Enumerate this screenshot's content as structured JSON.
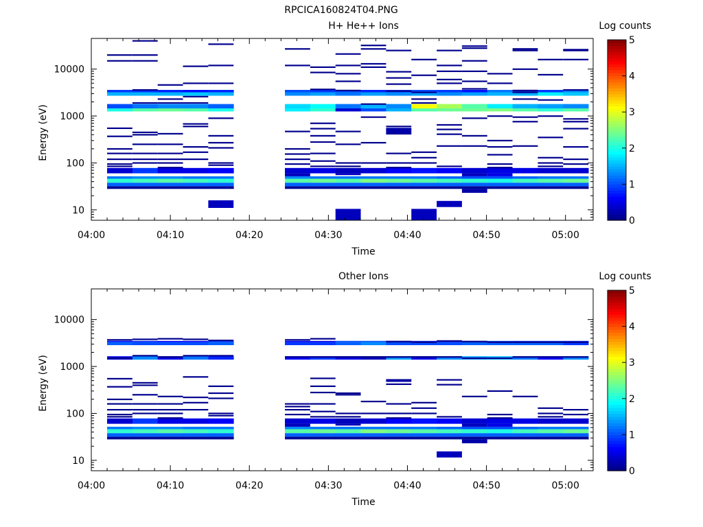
{
  "title": "RPCICA160824T04.PNG",
  "chart_data": [
    {
      "type": "heatmap",
      "title": "H+ He++ Ions",
      "xlabel": "Time",
      "ylabel": "Energy (eV)",
      "x_ticks": [
        "04:00",
        "04:10",
        "04:20",
        "04:30",
        "04:40",
        "04:50",
        "05:00"
      ],
      "y_ticks": [
        "10",
        "100",
        "1000",
        "10000"
      ],
      "x_range_min": [
        0,
        63.5
      ],
      "y_range_ev": [
        6,
        45000
      ],
      "y_scale": "log",
      "colorbar": {
        "label": "Log counts",
        "ticks": [
          "0",
          "1",
          "2",
          "3",
          "4",
          "5"
        ],
        "range": [
          0,
          5
        ],
        "colormap": "jet"
      },
      "time_columns_min": [
        [
          2.0,
          5.2
        ],
        [
          5.2,
          8.4
        ],
        [
          8.4,
          11.6
        ],
        [
          11.6,
          14.8
        ],
        [
          14.8,
          18.0
        ],
        [
          24.5,
          27.7
        ],
        [
          27.7,
          30.9
        ],
        [
          30.9,
          34.1
        ],
        [
          34.1,
          37.3
        ],
        [
          37.3,
          40.5
        ],
        [
          40.5,
          43.7
        ],
        [
          43.7,
          46.9
        ],
        [
          46.9,
          50.1
        ],
        [
          50.1,
          53.3
        ],
        [
          53.3,
          56.5
        ],
        [
          56.5,
          59.7
        ],
        [
          59.7,
          62.9
        ]
      ],
      "bands": [
        {
          "e_low": 28,
          "e_high": 32,
          "levels": [
            0.1,
            0.1,
            0.1,
            0.1,
            0.1,
            0.1,
            0.1,
            0.1,
            0.1,
            0.1,
            0.1,
            0.1,
            0.1,
            0.1,
            0.1,
            0.1,
            0.1
          ]
        },
        {
          "e_low": 32,
          "e_high": 38,
          "levels": [
            1.1,
            1.1,
            1.1,
            1.1,
            1.1,
            1.1,
            1.1,
            1.1,
            1.1,
            1.1,
            1.1,
            1.1,
            1.1,
            1.1,
            1.1,
            1.1,
            1.1
          ]
        },
        {
          "e_low": 38,
          "e_high": 46,
          "levels": [
            2.1,
            2.2,
            2.3,
            2.2,
            2.1,
            2.3,
            2.4,
            2.3,
            2.5,
            2.4,
            2.3,
            2.2,
            2.1,
            2.0,
            2.2,
            2.3,
            2.4
          ]
        },
        {
          "e_low": 46,
          "e_high": 52,
          "levels": [
            1.2,
            1.3,
            1.3,
            1.2,
            1.2,
            1.3,
            1.2,
            1.2,
            1.2,
            1.2,
            1.2,
            1.1,
            1.0,
            1.0,
            1.1,
            1.2,
            1.2
          ]
        },
        {
          "e_low": 60,
          "e_high": 78,
          "levels": [
            0.4,
            0.9,
            0.5,
            0.5,
            0.6,
            0.4,
            0.5,
            0.3,
            0.4,
            0.6,
            0.7,
            0.6,
            0.4,
            0.5,
            0.5,
            0.4,
            0.4
          ]
        },
        {
          "e_low": 1250,
          "e_high": 1450,
          "levels": [
            2.0,
            2.3,
            2.4,
            2.3,
            2.0,
            1.8,
            2.1,
            0.4,
            1.0,
            1.5,
            2.3,
            2.4,
            2.4,
            2.5,
            2.3,
            2.1,
            2.3
          ]
        },
        {
          "e_low": 1450,
          "e_high": 1800,
          "levels": [
            1.0,
            1.2,
            1.3,
            1.3,
            1.1,
            1.7,
            1.9,
            1.2,
            1.5,
            1.3,
            3.1,
            2.7,
            2.3,
            1.8,
            1.5,
            1.4,
            1.3
          ]
        },
        {
          "e_low": 2700,
          "e_high": 3200,
          "levels": [
            1.5,
            1.5,
            1.5,
            1.6,
            1.5,
            1.3,
            1.4,
            1.2,
            1.4,
            1.3,
            1.4,
            1.3,
            1.4,
            1.5,
            1.5,
            1.8,
            1.6
          ]
        },
        {
          "e_low": 3200,
          "e_high": 3600,
          "levels": [
            0.9,
            0.9,
            0.8,
            0.7,
            0.8,
            1.0,
            0.9,
            1.0,
            0.8,
            0.9,
            1.0,
            0.9,
            0.7,
            1.2,
            1.0,
            0.9,
            1.3
          ]
        }
      ],
      "lines": [
        {
          "t": 0,
          "e": [
            20000,
            15000,
            550,
            370,
            200,
            160,
            120,
            95,
            85
          ]
        },
        {
          "t": 1,
          "e": [
            40000,
            20000,
            15000,
            3600,
            1900,
            450,
            400,
            250,
            160,
            120,
            100
          ]
        },
        {
          "t": 2,
          "e": [
            4600,
            2300,
            1900,
            420,
            250,
            160,
            120,
            100,
            80
          ]
        },
        {
          "t": 3,
          "e": [
            11500,
            5000,
            2600,
            1900,
            680,
            600,
            220,
            170,
            120
          ]
        },
        {
          "t": 4,
          "e": [
            34000,
            12000,
            5000,
            900,
            380,
            270,
            210,
            100,
            90
          ]
        },
        {
          "t": 5,
          "e": [
            27000,
            12000,
            470,
            200,
            155,
            120,
            95
          ]
        },
        {
          "t": 6,
          "e": [
            11000,
            8500,
            3700,
            700,
            540,
            380,
            280,
            160,
            110,
            85
          ]
        },
        {
          "t": 7,
          "e": [
            21000,
            12000,
            8000,
            5500,
            3500,
            470,
            250,
            100,
            85
          ]
        },
        {
          "t": 8,
          "e": [
            32000,
            27000,
            13000,
            11000,
            1800,
            950,
            270,
            100
          ]
        },
        {
          "t": 9,
          "e": [
            25000,
            8800,
            6500,
            4800,
            3400,
            600,
            520,
            420,
            160,
            100,
            80
          ]
        },
        {
          "t": 10,
          "e": [
            16000,
            7400,
            3200,
            2300,
            1900,
            170,
            130,
            100
          ]
        },
        {
          "t": 11,
          "e": [
            25000,
            12000,
            9000,
            6000,
            5000,
            650,
            520,
            410,
            230,
            85
          ]
        },
        {
          "t": 12,
          "e": [
            31000,
            28000,
            15000,
            9000,
            5500,
            3800,
            900,
            380,
            230
          ]
        },
        {
          "t": 13,
          "e": [
            8000,
            5000,
            1000,
            300,
            220,
            150,
            95,
            80
          ]
        },
        {
          "t": 14,
          "e": [
            27000,
            25000,
            10000,
            3500,
            3200,
            2300,
            950,
            760,
            230
          ]
        },
        {
          "t": 15,
          "e": [
            16000,
            7600,
            2200,
            1000,
            350,
            130,
            100,
            85
          ]
        },
        {
          "t": 16,
          "e": [
            26000,
            25000,
            16000,
            3600,
            870,
            760,
            540,
            220,
            120,
            95
          ]
        }
      ],
      "blocks": [
        {
          "t0": 14.8,
          "t1": 18.0,
          "e0": 11,
          "e1": 16,
          "level": 0.3
        },
        {
          "t0": 30.9,
          "t1": 34.1,
          "e0": 6,
          "e1": 10.5,
          "level": 0.3
        },
        {
          "t0": 40.5,
          "t1": 43.7,
          "e0": 6,
          "e1": 10.5,
          "level": 0.3
        },
        {
          "t0": 43.7,
          "t1": 46.9,
          "e0": 11.5,
          "e1": 15.5,
          "level": 0.3
        },
        {
          "t0": 37.3,
          "t1": 40.5,
          "e0": 420,
          "e1": 560,
          "level": 0.2
        },
        {
          "t0": 46.9,
          "t1": 50.1,
          "e0": 23,
          "e1": 28,
          "level": 0.2
        },
        {
          "t0": 46.9,
          "t1": 50.1,
          "e0": 52,
          "e1": 60,
          "level": 0.3
        },
        {
          "t0": 50.1,
          "t1": 53.3,
          "e0": 52,
          "e1": 60,
          "level": 0.5
        },
        {
          "t0": 24.5,
          "t1": 27.7,
          "e0": 52,
          "e1": 60,
          "level": 0.3
        },
        {
          "t0": 30.9,
          "t1": 34.1,
          "e0": 55,
          "e1": 60,
          "level": 0.3
        }
      ]
    },
    {
      "type": "heatmap",
      "title": "Other Ions",
      "xlabel": "Time",
      "ylabel": "Energy (eV)",
      "x_ticks": [
        "04:00",
        "04:10",
        "04:20",
        "04:30",
        "04:40",
        "04:50",
        "05:00"
      ],
      "y_ticks": [
        "10",
        "100",
        "1000",
        "10000"
      ],
      "x_range_min": [
        0,
        63.5
      ],
      "y_range_ev": [
        6,
        45000
      ],
      "y_scale": "log",
      "colorbar": {
        "label": "Log counts",
        "ticks": [
          "0",
          "1",
          "2",
          "3",
          "4",
          "5"
        ],
        "range": [
          0,
          5
        ],
        "colormap": "jet"
      },
      "time_columns_min": [
        [
          2.0,
          5.2
        ],
        [
          5.2,
          8.4
        ],
        [
          8.4,
          11.6
        ],
        [
          11.6,
          14.8
        ],
        [
          14.8,
          18.0
        ],
        [
          24.5,
          27.7
        ],
        [
          27.7,
          30.9
        ],
        [
          30.9,
          34.1
        ],
        [
          34.1,
          37.3
        ],
        [
          37.3,
          40.5
        ],
        [
          40.5,
          43.7
        ],
        [
          43.7,
          46.9
        ],
        [
          46.9,
          50.1
        ],
        [
          50.1,
          53.3
        ],
        [
          53.3,
          56.5
        ],
        [
          56.5,
          59.7
        ],
        [
          59.7,
          62.9
        ]
      ],
      "bands": [
        {
          "e_low": 28,
          "e_high": 32,
          "levels": [
            0.1,
            0.1,
            0.1,
            0.1,
            0.1,
            0.1,
            0.1,
            0.1,
            0.1,
            0.1,
            0.1,
            0.1,
            0.1,
            0.1,
            0.1,
            0.1,
            0.1
          ]
        },
        {
          "e_low": 32,
          "e_high": 38,
          "levels": [
            1.1,
            1.1,
            1.1,
            1.1,
            1.1,
            1.1,
            1.1,
            1.1,
            1.1,
            1.1,
            1.1,
            1.1,
            1.1,
            1.1,
            1.1,
            1.1,
            1.1
          ]
        },
        {
          "e_low": 38,
          "e_high": 46,
          "levels": [
            2.1,
            2.2,
            2.3,
            2.2,
            2.1,
            2.3,
            2.4,
            2.3,
            2.5,
            2.4,
            2.3,
            2.2,
            2.1,
            2.0,
            2.2,
            2.3,
            2.4
          ]
        },
        {
          "e_low": 46,
          "e_high": 52,
          "levels": [
            1.2,
            1.3,
            1.3,
            1.2,
            1.2,
            1.3,
            1.2,
            1.2,
            1.2,
            1.2,
            1.2,
            1.1,
            1.0,
            1.0,
            1.1,
            1.2,
            1.2
          ]
        },
        {
          "e_low": 60,
          "e_high": 78,
          "levels": [
            0.4,
            0.9,
            0.5,
            0.5,
            0.6,
            0.4,
            0.5,
            0.3,
            0.4,
            0.6,
            0.7,
            0.6,
            0.4,
            0.5,
            0.5,
            0.4,
            0.4
          ]
        },
        {
          "e_low": 1400,
          "e_high": 1650,
          "levels": [
            0.5,
            1.3,
            0.5,
            1.2,
            0.8,
            0.6,
            0.9,
            0.5,
            0.3,
            1.4,
            0.5,
            1.3,
            1.4,
            1.5,
            1.2,
            0.6,
            1.3
          ]
        },
        {
          "e_low": 2850,
          "e_high": 3300,
          "levels": [
            1.1,
            1.0,
            1.0,
            1.0,
            1.1,
            0.9,
            0.9,
            1.1,
            1.3,
            1.0,
            1.0,
            1.0,
            1.1,
            1.1,
            1.1,
            1.1,
            0.9
          ]
        },
        {
          "e_low": 3300,
          "e_high": 3500,
          "levels": [
            0.7,
            0.8,
            0.6,
            0.6,
            0.9,
            0.6,
            0.5,
            1.0,
            1.0,
            0.7,
            0.8,
            0.6,
            0.8,
            1.0,
            0.9,
            0.9,
            0.8
          ]
        }
      ],
      "lines": [
        {
          "t": 0,
          "e": [
            3700,
            1500,
            550,
            370,
            200,
            160,
            120,
            95,
            85
          ]
        },
        {
          "t": 1,
          "e": [
            3800,
            1700,
            450,
            400,
            250,
            160,
            120,
            100
          ]
        },
        {
          "t": 2,
          "e": [
            3900,
            1600,
            230,
            160,
            120,
            100,
            80
          ]
        },
        {
          "t": 3,
          "e": [
            3800,
            1700,
            600,
            220,
            170,
            120
          ]
        },
        {
          "t": 4,
          "e": [
            3600,
            1700,
            380,
            270,
            210,
            100,
            90
          ]
        },
        {
          "t": 5,
          "e": [
            3700,
            1600,
            160,
            140,
            120,
            95
          ]
        },
        {
          "t": 6,
          "e": [
            3900,
            1600,
            560,
            380,
            280,
            160,
            110,
            85
          ]
        },
        {
          "t": 7,
          "e": [
            1600,
            270,
            250,
            100,
            85
          ]
        },
        {
          "t": 8,
          "e": [
            1600,
            180,
            100
          ]
        },
        {
          "t": 9,
          "e": [
            3400,
            1600,
            520,
            420,
            160,
            100,
            80
          ]
        },
        {
          "t": 10,
          "e": [
            3300,
            1600,
            170,
            130,
            100
          ]
        },
        {
          "t": 11,
          "e": [
            3500,
            1600,
            520,
            410,
            85
          ]
        },
        {
          "t": 12,
          "e": [
            3400,
            1500,
            230
          ]
        },
        {
          "t": 13,
          "e": [
            3300,
            1500,
            300,
            95,
            80
          ]
        },
        {
          "t": 14,
          "e": [
            3300,
            1600,
            230
          ]
        },
        {
          "t": 15,
          "e": [
            3300,
            1600,
            130,
            100,
            85
          ]
        },
        {
          "t": 16,
          "e": [
            3300,
            1600,
            120,
            95
          ]
        }
      ],
      "blocks": [
        {
          "t0": 43.7,
          "t1": 46.9,
          "e0": 11.5,
          "e1": 15.5,
          "level": 0.3
        },
        {
          "t0": 37.3,
          "t1": 40.5,
          "e0": 470,
          "e1": 520,
          "level": 0.2
        },
        {
          "t0": 46.9,
          "t1": 50.1,
          "e0": 23,
          "e1": 28,
          "level": 0.2
        },
        {
          "t0": 46.9,
          "t1": 50.1,
          "e0": 52,
          "e1": 60,
          "level": 0.3
        },
        {
          "t0": 50.1,
          "t1": 53.3,
          "e0": 52,
          "e1": 60,
          "level": 0.5
        },
        {
          "t0": 24.5,
          "t1": 27.7,
          "e0": 52,
          "e1": 60,
          "level": 0.3
        },
        {
          "t0": 30.9,
          "t1": 34.1,
          "e0": 55,
          "e1": 60,
          "level": 0.3
        }
      ]
    }
  ]
}
